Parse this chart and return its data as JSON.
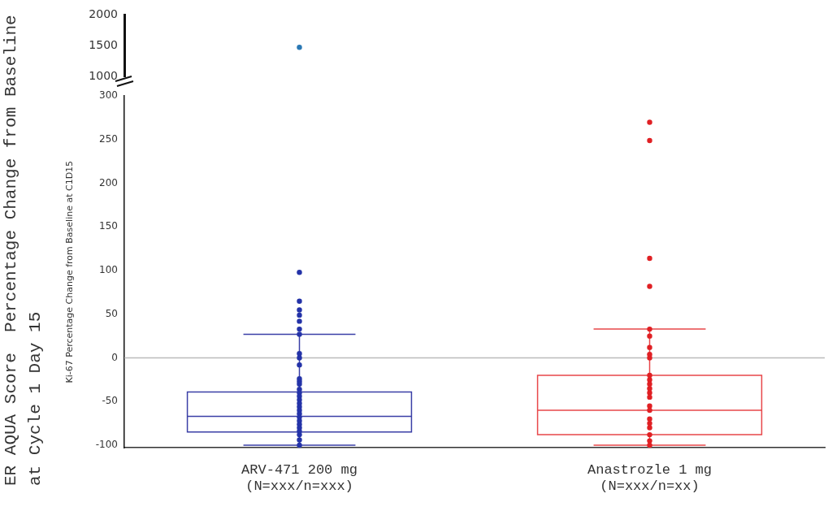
{
  "chart_data": [
    {
      "type": "scatter",
      "categories": [
        "ARV-471 200 mg\n(N=xxx/n=xxx)",
        "Anastrozle 1 mg\n(N=xxx/n=xx)"
      ],
      "ylim": [
        1000,
        2000
      ],
      "yticks": [
        1000,
        1500,
        2000
      ],
      "tick_labels": "y",
      "marker": "circle",
      "grid": false,
      "legend": false,
      "series": [
        {
          "color": "#2a78b4",
          "x": [
            "ARV-471 200 mg\n(N=xxx/n=xxx)"
          ],
          "values": [
            1470
          ]
        }
      ]
    },
    {
      "type": "box",
      "categories": [
        "ARV-471 200 mg\n(N=xxx/n=xxx)",
        "Anastrozle 1 mg\n(N=xxx/n=xx)"
      ],
      "ylabel": "Ki-67 Percentage Change from Baseline at C1D15",
      "annotations": [
        "ER AQUA Score  Percentage Change from Baseline at Cycle 1 Day 15"
      ],
      "ylim": [
        -103,
        300
      ],
      "yticks": [
        -100,
        -50,
        0,
        50,
        100,
        150,
        200,
        250,
        300
      ],
      "marker": "circle",
      "grid": false,
      "legend": false,
      "ref_lines": [
        {
          "axis": "y",
          "value": 0,
          "color": "#bbbbbb"
        }
      ],
      "series": [
        {
          "colors": [
            "#3a3fa6",
            "#e8474a"
          ],
          "boxes": [
            {
              "low": -100,
              "q1": -85,
              "median": -67,
              "q3": -39,
              "high": 27
            },
            {
              "low": -100,
              "q1": -88,
              "median": -60,
              "q3": -20,
              "high": 33
            }
          ]
        },
        {
          "type": "scatter",
          "color": "#2433a8",
          "x": [
            "ARV-471 200 mg\n(N=xxx/n=xxx)",
            "ARV-471 200 mg\n(N=xxx/n=xxx)",
            "ARV-471 200 mg\n(N=xxx/n=xxx)",
            "ARV-471 200 mg\n(N=xxx/n=xxx)",
            "ARV-471 200 mg\n(N=xxx/n=xxx)",
            "ARV-471 200 mg\n(N=xxx/n=xxx)",
            "ARV-471 200 mg\n(N=xxx/n=xxx)",
            "ARV-471 200 mg\n(N=xxx/n=xxx)",
            "ARV-471 200 mg\n(N=xxx/n=xxx)",
            "ARV-471 200 mg\n(N=xxx/n=xxx)",
            "ARV-471 200 mg\n(N=xxx/n=xxx)",
            "ARV-471 200 mg\n(N=xxx/n=xxx)",
            "ARV-471 200 mg\n(N=xxx/n=xxx)",
            "ARV-471 200 mg\n(N=xxx/n=xxx)",
            "ARV-471 200 mg\n(N=xxx/n=xxx)",
            "ARV-471 200 mg\n(N=xxx/n=xxx)",
            "ARV-471 200 mg\n(N=xxx/n=xxx)",
            "ARV-471 200 mg\n(N=xxx/n=xxx)",
            "ARV-471 200 mg\n(N=xxx/n=xxx)",
            "ARV-471 200 mg\n(N=xxx/n=xxx)",
            "ARV-471 200 mg\n(N=xxx/n=xxx)",
            "ARV-471 200 mg\n(N=xxx/n=xxx)",
            "ARV-471 200 mg\n(N=xxx/n=xxx)",
            "ARV-471 200 mg\n(N=xxx/n=xxx)",
            "ARV-471 200 mg\n(N=xxx/n=xxx)",
            "ARV-471 200 mg\n(N=xxx/n=xxx)",
            "ARV-471 200 mg\n(N=xxx/n=xxx)",
            "ARV-471 200 mg\n(N=xxx/n=xxx)",
            "ARV-471 200 mg\n(N=xxx/n=xxx)",
            "ARV-471 200 mg\n(N=xxx/n=xxx)"
          ],
          "values": [
            98,
            65,
            55,
            49,
            42,
            33,
            27,
            5,
            null,
            0,
            -8,
            -24,
            -27,
            -30,
            -36,
            -40,
            -44,
            -48,
            -52,
            -56,
            -60,
            -64,
            -68,
            -72,
            -76,
            -80,
            -84,
            -88,
            -94,
            -100
          ]
        },
        {
          "type": "scatter",
          "color": "#e02024",
          "x": [
            "Anastrozle 1 mg\n(N=xxx/n=xx)",
            "Anastrozle 1 mg\n(N=xxx/n=xx)",
            "Anastrozle 1 mg\n(N=xxx/n=xx)",
            "Anastrozle 1 mg\n(N=xxx/n=xx)",
            "Anastrozle 1 mg\n(N=xxx/n=xx)",
            "Anastrozle 1 mg\n(N=xxx/n=xx)",
            "Anastrozle 1 mg\n(N=xxx/n=xx)",
            "Anastrozle 1 mg\n(N=xxx/n=xx)",
            "Anastrozle 1 mg\n(N=xxx/n=xx)",
            "Anastrozle 1 mg\n(N=xxx/n=xx)",
            "Anastrozle 1 mg\n(N=xxx/n=xx)",
            "Anastrozle 1 mg\n(N=xxx/n=xx)",
            "Anastrozle 1 mg\n(N=xxx/n=xx)",
            "Anastrozle 1 mg\n(N=xxx/n=xx)",
            "Anastrozle 1 mg\n(N=xxx/n=xx)",
            "Anastrozle 1 mg\n(N=xxx/n=xx)",
            "Anastrozle 1 mg\n(N=xxx/n=xx)",
            "Anastrozle 1 mg\n(N=xxx/n=xx)",
            "Anastrozle 1 mg\n(N=xxx/n=xx)",
            "Anastrozle 1 mg\n(N=xxx/n=xx)",
            "Anastrozle 1 mg\n(N=xxx/n=xx)",
            "Anastrozle 1 mg\n(N=xxx/n=xx)",
            "Anastrozle 1 mg\n(N=xxx/n=xx)"
          ],
          "values": [
            270,
            249,
            114,
            82,
            33,
            25,
            12,
            4,
            0,
            -20,
            -25,
            -30,
            -35,
            -40,
            -45,
            -55,
            -60,
            -70,
            -75,
            -80,
            -88,
            -95,
            -100
          ]
        }
      ]
    }
  ]
}
